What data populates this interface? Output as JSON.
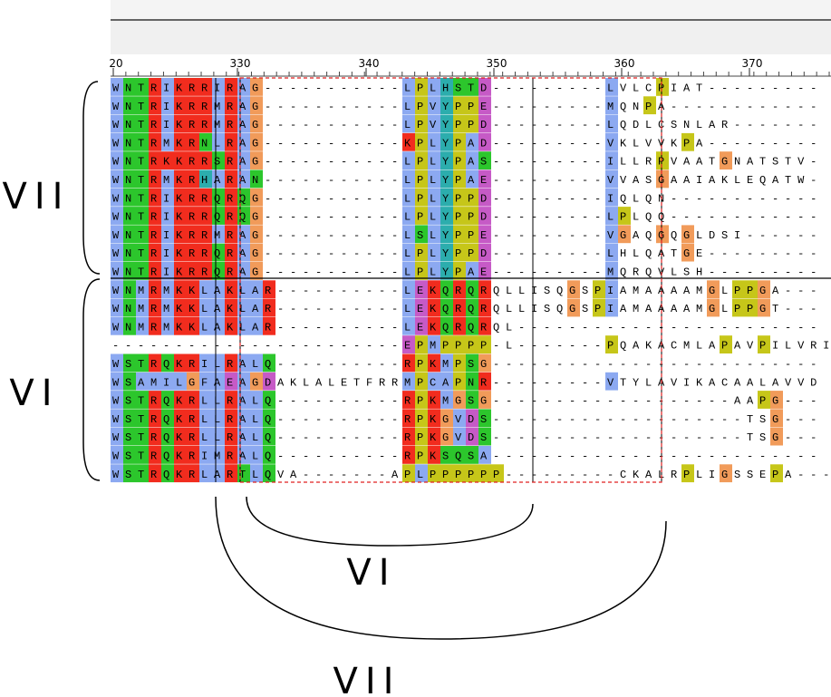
{
  "ruler": {
    "labels": [
      "20",
      "330",
      "340",
      "350",
      "360",
      "370"
    ]
  },
  "groups": [
    {
      "label": "VII",
      "sequences": [
        "WNTRIKRRIRAG-----------LPLHSTD---------LVLCPIAT---------",
        "WNTRIKRRMRAG-----------LPVYPPE---------MQNPA------------",
        "WNTRIKRRMRAG-----------LPVYPPD---------LQDLCSNLAR-------",
        "WNTRMKRNLRAG-----------KPLYPAD---------VKLVVKPA---------",
        "WNTRKKRRSRAG-----------LPLYPAS---------ILLRPVAATGNATSTV-",
        "WNTRMKRHARAN-----------LPLYPAE---------VVASGAAIAKLEQATW-",
        "WNTRIKRRQRQG-----------LPLYPPD---------IQLQN------------",
        "WNTRIKRRQRQG-----------LPLYPPD---------LPLQQ------------",
        "WNTRIKRRMRAG-----------LSLYPPE---------VGAQGQGLDSI------",
        "WNTRIKRRQRAG-----------LPLYPPD---------LHLQATGE---------",
        "WNTRIKRRQRAG-----------LPLYPAE---------MQRQVLSH---------"
      ]
    },
    {
      "label": "VI",
      "sequences": [
        "WNMRMKKLAKLAR----------LEKQRQRQLLISQGSPIAMAAAAMGLPPGA---",
        "WNMRMKKLAKLAR----------LEKQRQRQLLISQGSPIAMAAAAMGLPPGT---",
        "WNMRMKKLAKLAR----------LEKQRQRQL------------------------",
        "-----------------------EPMPPPP-L-------PQAKACMLAPAVPILVRI",
        "WSTRQKRILRALQ----------RPKMPSG--------------------------",
        "WSAMILGFAEAGDAKLALETFRRMPCAPNR---------VTYLAVIKACAALAVVD",
        "WSTRQKRLLRALQ----------RPKMGSG-------------------AAPG---",
        "WSTRQKRLLRALQ----------RPKGVDS--------------------TSG---",
        "WSTRQKRLLRALQ----------RPKGVDS--------------------TSG---",
        "WSTRQKRIMRALQ----------RPKSQSA--------------------------",
        "WSTRQKRLARTLQVA-------APLPPPPPP---------CKALRPLIGSSEPA---"
      ]
    }
  ],
  "regions": [
    {
      "label": "VI"
    },
    {
      "label": "VII"
    }
  ]
}
